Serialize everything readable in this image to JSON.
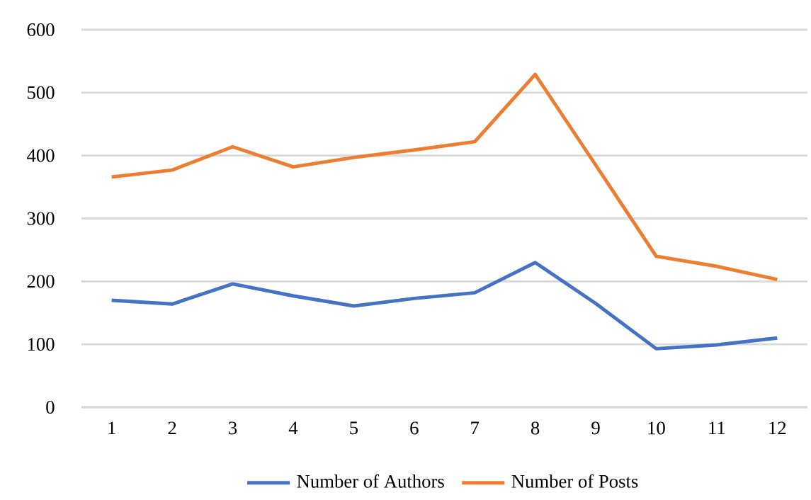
{
  "chart_data": {
    "type": "line",
    "categories": [
      "1",
      "2",
      "3",
      "4",
      "5",
      "6",
      "7",
      "8",
      "9",
      "10",
      "11",
      "12"
    ],
    "series": [
      {
        "name": "Number of Authors",
        "color": "#4472c4",
        "values": [
          170,
          164,
          196,
          177,
          161,
          173,
          182,
          230,
          165,
          93,
          99,
          110
        ]
      },
      {
        "name": "Number of Posts",
        "color": "#ed7d31",
        "values": [
          366,
          377,
          414,
          382,
          397,
          409,
          422,
          529,
          385,
          240,
          224,
          203
        ]
      }
    ],
    "ylim": [
      0,
      600
    ],
    "yticks": [
      0,
      100,
      200,
      300,
      400,
      500,
      600
    ],
    "grid": "y",
    "legend": "bottom",
    "marker": "none",
    "line_style": "solid"
  }
}
